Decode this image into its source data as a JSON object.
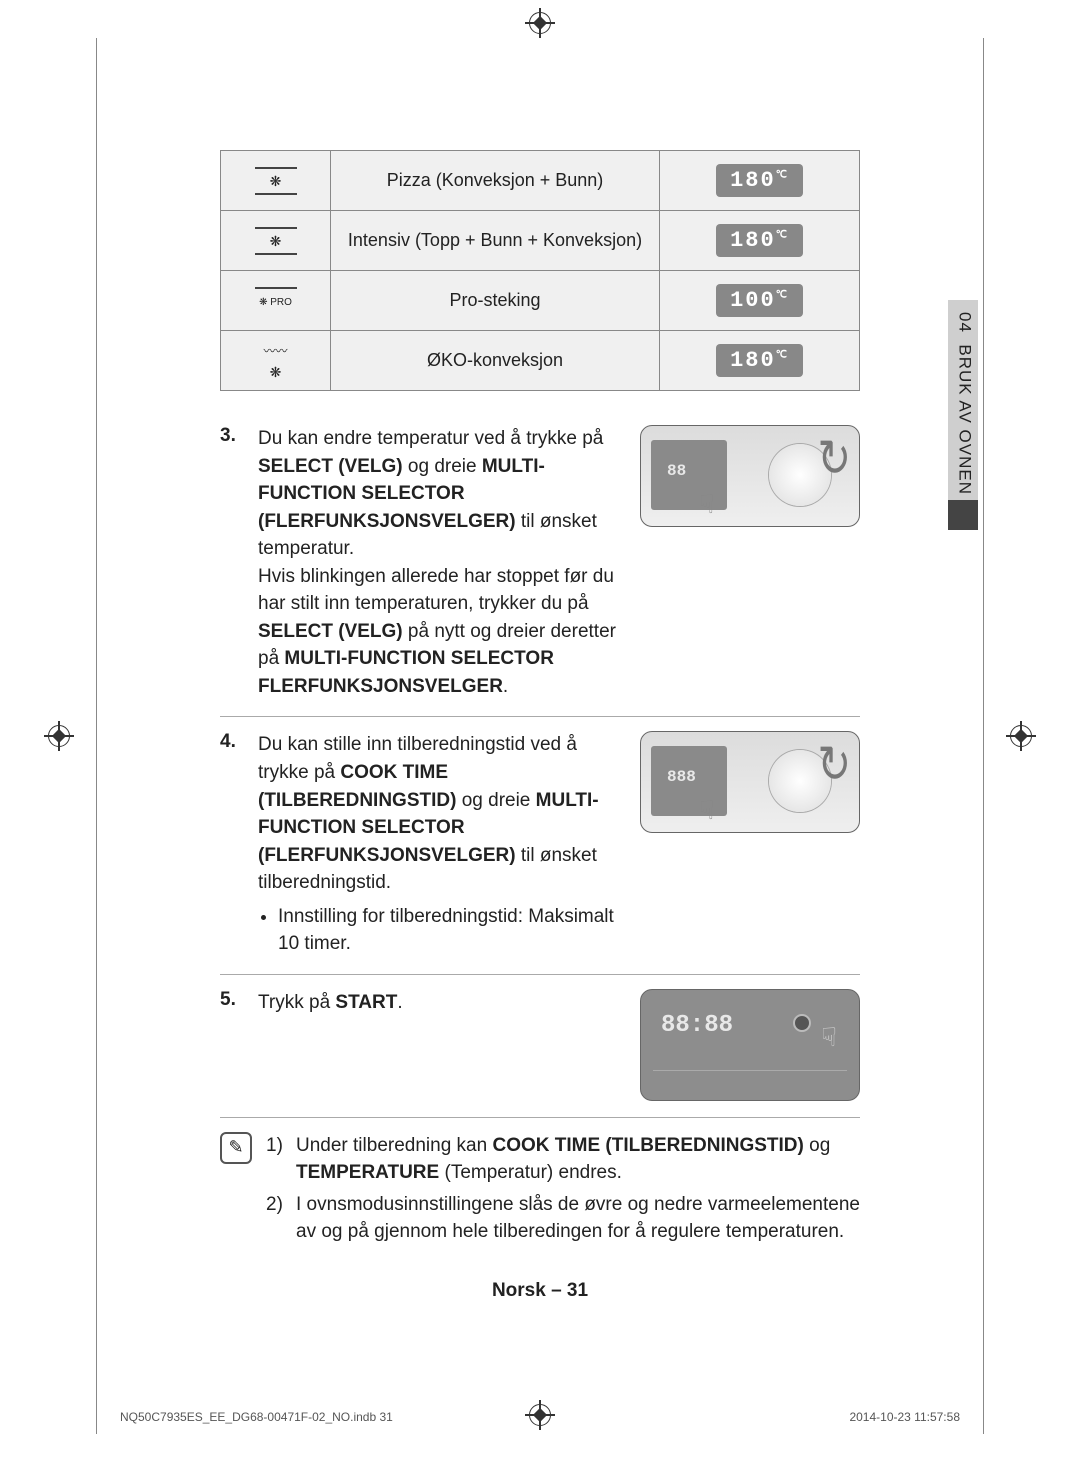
{
  "sideTab": {
    "section": "04",
    "title": "BRUK AV OVNEN"
  },
  "table": {
    "rows": [
      {
        "label": "Pizza (Konveksjon + Bunn)",
        "temp": "180",
        "iconTop": true,
        "iconBottom": true,
        "iconExtra": ""
      },
      {
        "label": "Intensiv (Topp + Bunn + Konveksjon)",
        "temp": "180",
        "iconTop": true,
        "iconBottom": true,
        "iconExtra": ""
      },
      {
        "label": "Pro-steking",
        "temp": "100",
        "iconTop": true,
        "iconBottom": false,
        "iconExtra": "PRO"
      },
      {
        "label": "ØKO-konveksjon",
        "temp": "180",
        "iconTop": false,
        "iconBottom": false,
        "iconExtra": "~~~~"
      }
    ],
    "tempUnit": "℃"
  },
  "steps": {
    "s3": {
      "num": "3.",
      "p1a": "Du kan endre temperatur ved å trykke på ",
      "p1b": "SELECT (VELG)",
      "p1c": " og dreie ",
      "p1d": "MULTI-FUNCTION SELECTOR (FLERFUNKSJONSVELGER)",
      "p1e": " til ønsket temperatur.",
      "p2a": "Hvis blinkingen allerede har stoppet før du har stilt inn temperaturen, trykker du på ",
      "p2b": "SELECT (VELG)",
      "p2c": " på nytt og dreier deretter på ",
      "p2d": "MULTI-FUNCTION SELECTOR FLERFUNKSJONSVELGER",
      "p2e": ".",
      "panelSeg": "88"
    },
    "s4": {
      "num": "4.",
      "p1a": "Du kan stille inn tilberedningstid ved å trykke på ",
      "p1b": "COOK TIME (TILBEREDNINGSTID)",
      "p1c": " og dreie ",
      "p1d": "MULTI-FUNCTION SELECTOR (FLERFUNKSJONSVELGER)",
      "p1e": " til ønsket tilberedningstid.",
      "bullet": "Innstilling for tilberedningstid: Maksimalt 10 timer.",
      "panelSeg": "888"
    },
    "s5": {
      "num": "5.",
      "p1a": "Trykk på ",
      "p1b": "START",
      "p1c": ".",
      "panelSeg": "88:88"
    }
  },
  "notes": {
    "n1": {
      "num": "1)",
      "a": "Under tilberedning kan ",
      "b": "COOK TIME (TILBEREDNINGSTID)",
      "c": " og ",
      "d": "TEMPERATURE",
      "e": " (Temperatur) endres."
    },
    "n2": {
      "num": "2)",
      "a": "I ovnsmodusinnstillingene slås de øvre og nedre varmeelementene av og på gjennom hele tilberedingen for å regulere temperaturen."
    }
  },
  "footer": "Norsk – 31",
  "print": {
    "file": "NQ50C7935ES_EE_DG68-00471F-02_NO.indb   31",
    "ts": "2014-10-23    11:57:58"
  },
  "icons": {
    "handGlyph": "☟",
    "arrowGlyph": "↻",
    "noteGlyph": "✎",
    "fanGlyph": "❋"
  }
}
